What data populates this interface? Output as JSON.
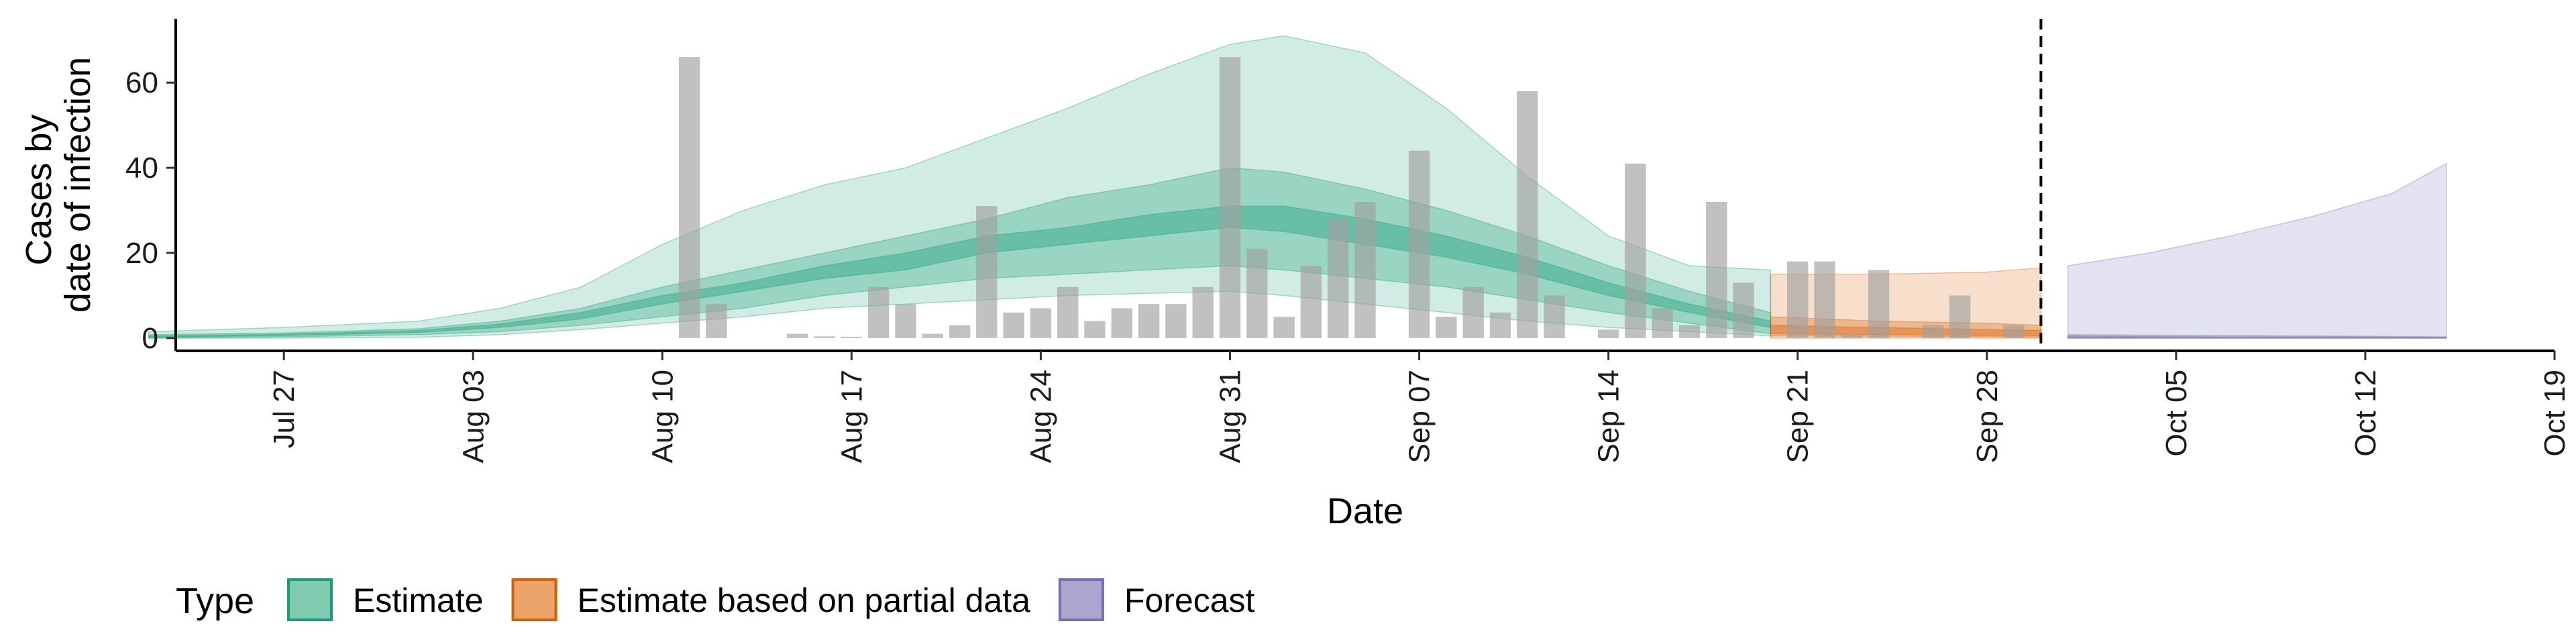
{
  "chart_data": {
    "type": "area",
    "xlabel": "Date",
    "ylabel_lines": [
      "Cases by",
      "date of infection"
    ],
    "x_domain": [
      "2020-07-23",
      "2020-10-19"
    ],
    "ylim": [
      -3,
      75
    ],
    "y_ticks": [
      0,
      20,
      40,
      60
    ],
    "x_ticks": [
      {
        "date": "2020-07-27",
        "label": "Jul 27"
      },
      {
        "date": "2020-08-03",
        "label": "Aug 03"
      },
      {
        "date": "2020-08-10",
        "label": "Aug 10"
      },
      {
        "date": "2020-08-17",
        "label": "Aug 17"
      },
      {
        "date": "2020-08-24",
        "label": "Aug 24"
      },
      {
        "date": "2020-08-31",
        "label": "Aug 31"
      },
      {
        "date": "2020-09-07",
        "label": "Sep 07"
      },
      {
        "date": "2020-09-14",
        "label": "Sep 14"
      },
      {
        "date": "2020-09-21",
        "label": "Sep 21"
      },
      {
        "date": "2020-09-28",
        "label": "Sep 28"
      },
      {
        "date": "2020-10-05",
        "label": "Oct 05"
      },
      {
        "date": "2020-10-12",
        "label": "Oct 12"
      },
      {
        "date": "2020-10-19",
        "label": "Oct 19"
      }
    ],
    "vline_date": "2020-09-30",
    "grid": false,
    "legend_position": "bottom",
    "legend": {
      "title": "Type",
      "items": [
        {
          "label": "Estimate",
          "fill": "#7fcbaf",
          "stroke": "#1b9e77"
        },
        {
          "label": "Estimate based on partial data",
          "fill": "#eba36a",
          "stroke": "#d95f02"
        },
        {
          "label": "Forecast",
          "fill": "#aaa6d0",
          "stroke": "#7570b3"
        }
      ]
    },
    "observed_cases": {
      "color": "#a0a0a0",
      "dates": [
        "2020-08-11",
        "2020-08-12",
        "2020-08-15",
        "2020-08-16",
        "2020-08-17",
        "2020-08-18",
        "2020-08-19",
        "2020-08-20",
        "2020-08-21",
        "2020-08-22",
        "2020-08-23",
        "2020-08-24",
        "2020-08-25",
        "2020-08-26",
        "2020-08-27",
        "2020-08-28",
        "2020-08-29",
        "2020-08-30",
        "2020-08-31",
        "2020-09-01",
        "2020-09-02",
        "2020-09-03",
        "2020-09-04",
        "2020-09-05",
        "2020-09-06",
        "2020-09-07",
        "2020-09-08",
        "2020-09-09",
        "2020-09-10",
        "2020-09-11",
        "2020-09-12",
        "2020-09-13",
        "2020-09-14",
        "2020-09-15",
        "2020-09-16",
        "2020-09-17",
        "2020-09-18",
        "2020-09-19",
        "2020-09-20",
        "2020-09-21",
        "2020-09-22",
        "2020-09-23",
        "2020-09-24",
        "2020-09-25",
        "2020-09-26",
        "2020-09-27",
        "2020-09-28",
        "2020-09-29",
        "2020-09-30"
      ],
      "values": [
        66,
        8,
        1,
        0.4,
        0.3,
        12,
        8,
        1,
        3,
        31,
        6,
        7,
        12,
        4,
        7,
        8,
        8,
        12,
        66,
        21,
        5,
        17,
        28,
        32,
        0,
        44,
        5,
        12,
        6,
        58,
        10,
        0,
        2,
        41,
        7,
        3,
        32,
        13,
        0,
        18,
        18,
        1,
        16,
        0,
        3,
        10,
        0,
        3,
        0
      ]
    },
    "series": [
      {
        "name": "Estimate",
        "color": "#1b9e77",
        "dates": [
          "2020-07-22",
          "2020-07-27",
          "2020-08-01",
          "2020-08-04",
          "2020-08-07",
          "2020-08-10",
          "2020-08-13",
          "2020-08-16",
          "2020-08-19",
          "2020-08-22",
          "2020-08-25",
          "2020-08-28",
          "2020-08-31",
          "2020-09-02",
          "2020-09-05",
          "2020-09-08",
          "2020-09-11",
          "2020-09-14",
          "2020-09-17",
          "2020-09-20"
        ],
        "lower_90": [
          0,
          0,
          0.2,
          0.8,
          2,
          3.5,
          5,
          7,
          8,
          9,
          10,
          10.5,
          11,
          10,
          8,
          6,
          4,
          2.5,
          1.5,
          0.5
        ],
        "upper_90": [
          1.5,
          2.5,
          4,
          7,
          12,
          22,
          30,
          36,
          40,
          47,
          54,
          62,
          69,
          71,
          67,
          54,
          38,
          24,
          17,
          16
        ],
        "lower_50": [
          0,
          0.3,
          0.8,
          1.5,
          3,
          5,
          7,
          10,
          12,
          14,
          15,
          16,
          17,
          16,
          14,
          12,
          9,
          6,
          3.5,
          1
        ],
        "upper_50": [
          0.8,
          1.2,
          2.2,
          4,
          7,
          12,
          16,
          20,
          24,
          28,
          33,
          36,
          40,
          39,
          35,
          30,
          24,
          17,
          11,
          6
        ],
        "lower_20": [
          0.2,
          0.6,
          1.3,
          2.5,
          4.5,
          8,
          11,
          14,
          16,
          20,
          22,
          24,
          26,
          25,
          22,
          19,
          15,
          10,
          6,
          2.5
        ],
        "upper_20": [
          0.5,
          0.9,
          1.8,
          3.3,
          6,
          10,
          13,
          17,
          20,
          24,
          26,
          29,
          31,
          31,
          28,
          24,
          19,
          13,
          8,
          4
        ]
      },
      {
        "name": "Estimate based on partial data",
        "color": "#d95f02",
        "dates": [
          "2020-09-20",
          "2020-09-24",
          "2020-09-28",
          "2020-09-30"
        ],
        "lower_90": [
          0,
          0,
          0,
          0
        ],
        "upper_90": [
          15,
          15,
          15.5,
          16.5
        ],
        "lower_50": [
          0.5,
          0.4,
          0.3,
          0.2
        ],
        "upper_50": [
          5,
          4,
          3.5,
          3
        ],
        "lower_20": [
          1,
          0.8,
          0.6,
          0.5
        ],
        "upper_20": [
          3,
          2.5,
          2,
          1.8
        ]
      },
      {
        "name": "Forecast",
        "color": "#7570b3",
        "dates": [
          "2020-10-01",
          "2020-10-04",
          "2020-10-07",
          "2020-10-10",
          "2020-10-13",
          "2020-10-15"
        ],
        "lower_90": [
          0,
          0,
          0,
          0,
          0,
          0
        ],
        "upper_90": [
          17,
          20,
          24,
          28.5,
          34,
          41
        ],
        "lower_50": [
          0,
          0,
          0,
          0,
          0,
          0
        ],
        "upper_50": [
          0.8,
          0.7,
          0.6,
          0.5,
          0.4,
          0.3
        ],
        "lower_20": [
          0,
          0,
          0,
          0,
          0,
          0
        ],
        "upper_20": [
          0.5,
          0.4,
          0.3,
          0.3,
          0.2,
          0.2
        ]
      }
    ]
  }
}
